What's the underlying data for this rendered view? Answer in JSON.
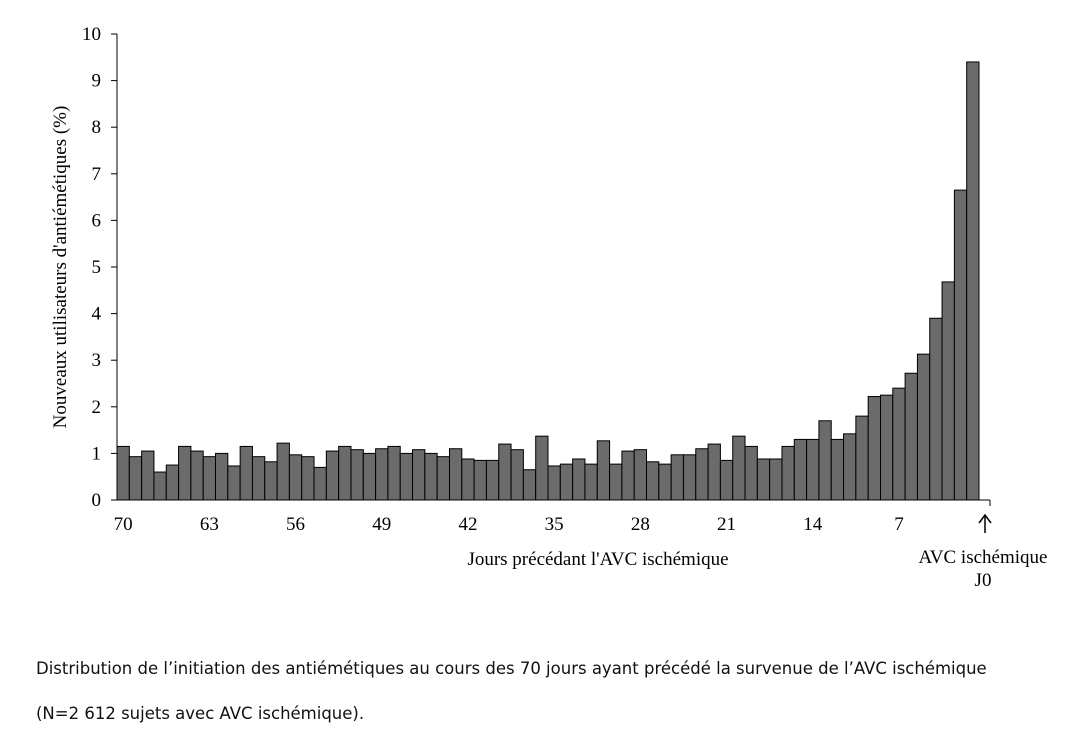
{
  "chart_data": {
    "type": "bar",
    "ylabel": "Nouveaux utilisateurs d'antiémétiques (%)",
    "xlabel": "Jours précédant l'AVC ischémique",
    "annotation": [
      "AVC ischémique",
      "J0"
    ],
    "categories": [
      70,
      null,
      null,
      null,
      null,
      null,
      null,
      63,
      null,
      null,
      null,
      null,
      null,
      null,
      56,
      null,
      null,
      null,
      null,
      null,
      null,
      49,
      null,
      null,
      null,
      null,
      null,
      null,
      42,
      null,
      null,
      null,
      null,
      null,
      null,
      35,
      null,
      null,
      null,
      null,
      null,
      null,
      28,
      null,
      null,
      null,
      null,
      null,
      null,
      21,
      null,
      null,
      null,
      null,
      null,
      null,
      14,
      null,
      null,
      null,
      null,
      null,
      null,
      7,
      null,
      null,
      null,
      null,
      null,
      null
    ],
    "values": [
      1.15,
      0.93,
      1.05,
      0.6,
      0.75,
      1.15,
      1.05,
      0.93,
      1.0,
      0.73,
      1.15,
      0.93,
      0.82,
      1.22,
      0.97,
      0.93,
      0.7,
      1.05,
      1.15,
      1.08,
      1.0,
      1.1,
      1.15,
      1.0,
      1.08,
      1.0,
      0.93,
      1.1,
      0.88,
      0.85,
      0.85,
      1.2,
      1.08,
      0.65,
      1.37,
      0.73,
      0.77,
      0.88,
      0.77,
      1.27,
      0.77,
      1.05,
      1.08,
      0.82,
      0.77,
      0.97,
      0.97,
      1.1,
      1.2,
      0.85,
      1.37,
      1.15,
      0.88,
      0.88,
      1.15,
      1.3,
      1.3,
      1.7,
      1.3,
      1.42,
      1.8,
      2.22,
      2.25,
      2.4,
      2.72,
      3.13,
      3.9,
      4.68,
      6.65,
      9.4
    ],
    "color": "#6b6b6b",
    "ylim": [
      0,
      10
    ],
    "yticks": [
      0,
      1,
      2,
      3,
      4,
      5,
      6,
      7,
      8,
      9,
      10
    ]
  },
  "caption": "Distribution de l’initiation des antiémétiques au cours des 70 jours ayant précédé la survenue de l’AVC ischémique (N=2 612 sujets avec AVC ischémique)."
}
